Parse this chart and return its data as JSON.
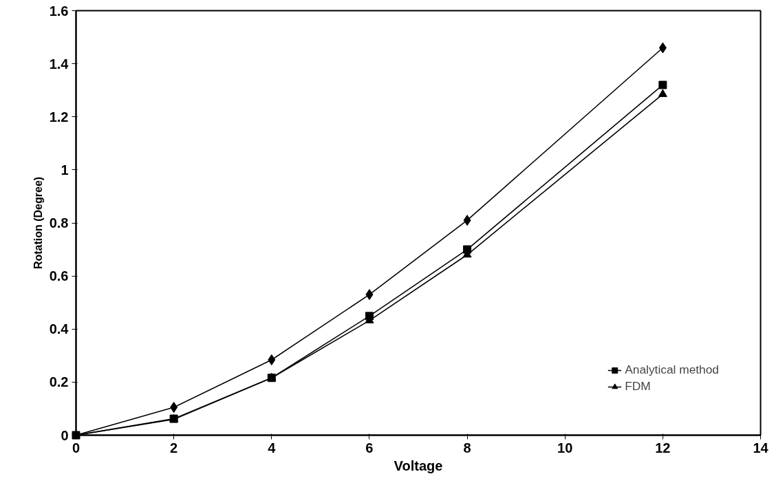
{
  "chart_data": {
    "type": "line",
    "xlabel": "Voltage",
    "ylabel": "Rotation (Degree)",
    "xlim": [
      0,
      14
    ],
    "xticks": [
      0,
      2,
      4,
      6,
      8,
      10,
      12,
      14
    ],
    "ylim": [
      0,
      1.6
    ],
    "yticks": [
      0,
      0.2,
      0.4,
      0.6,
      0.8,
      1,
      1.2,
      1.4,
      1.6
    ],
    "x": [
      0,
      2,
      4,
      6,
      8,
      12
    ],
    "series": [
      {
        "color": "#000000",
        "marker": "diamond",
        "values": [
          0,
          0.105,
          0.284,
          0.53,
          0.81,
          1.46
        ]
      },
      {
        "name": "Analytical method",
        "color": "#000000",
        "marker": "square",
        "values": [
          0,
          0.062,
          0.216,
          0.449,
          0.7,
          1.32
        ]
      },
      {
        "name": "FDM",
        "color": "#000000",
        "marker": "triangle",
        "values": [
          0,
          0.06,
          0.216,
          0.432,
          0.68,
          1.285
        ]
      }
    ],
    "grid": false,
    "legend": "bottom right",
    "line_style": "solid"
  }
}
